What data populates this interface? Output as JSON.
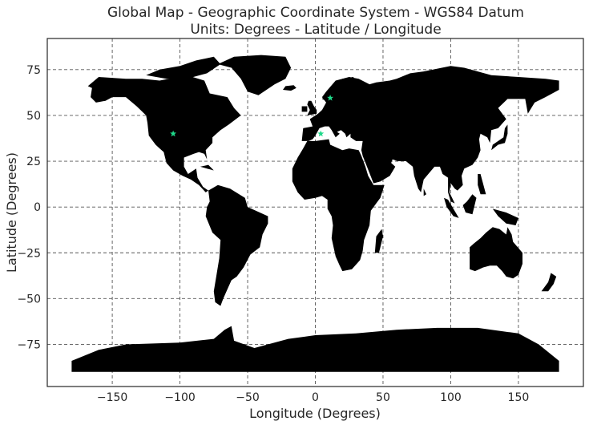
{
  "chart_data": {
    "type": "map",
    "title_line1": "Global Map - Geographic Coordinate System - WGS84 Datum",
    "title_line2": "Units: Degrees - Latitude / Longitude",
    "xlabel": "Longitude (Degrees)",
    "ylabel": "Latitude (Degrees)",
    "xlim": [
      -198,
      198
    ],
    "ylim": [
      -98,
      92
    ],
    "xticks": [
      -150,
      -100,
      -50,
      0,
      50,
      100,
      150
    ],
    "yticks": [
      75,
      50,
      25,
      0,
      -25,
      -50,
      -75
    ],
    "grid": true,
    "land_color": "#000000",
    "grid_color": "#555555",
    "marker_color": "#1fd98a",
    "markers": [
      {
        "lon": -105,
        "lat": 40
      },
      {
        "lon": 4,
        "lat": 40
      },
      {
        "lon": 11,
        "lat": 59.5
      }
    ]
  }
}
